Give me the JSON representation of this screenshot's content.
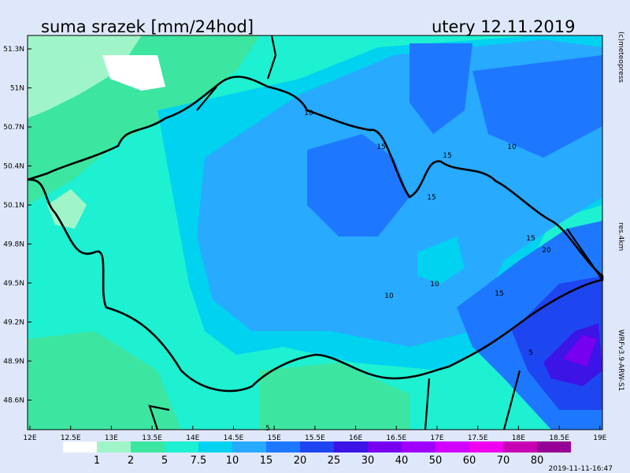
{
  "header": {
    "title": "suma srazek [mm/24hod]",
    "date": "utery 12.11.2019"
  },
  "axes": {
    "lat_labels": [
      "51.3N",
      "51N",
      "50.7N",
      "50.4N",
      "50.1N",
      "49.8N",
      "49.5N",
      "49.2N",
      "48.9N",
      "48.6N"
    ],
    "lon_labels": [
      "12E",
      "12.5E",
      "13E",
      "13.5E",
      "14E",
      "14.5E",
      "15E",
      "15.5E",
      "16E",
      "16.5E",
      "17E",
      "17.5E",
      "18E",
      "18.5E",
      "19E"
    ]
  },
  "contour_labels": [
    "10",
    "15",
    "15",
    "10",
    "15",
    "15",
    "20",
    "10",
    "15",
    "10",
    "5",
    "5"
  ],
  "colorbar": {
    "labels": [
      "1",
      "2",
      "5",
      "7.5",
      "10",
      "15",
      "20",
      "25",
      "30",
      "40",
      "50",
      "60",
      "70",
      "80"
    ],
    "colors": [
      "#ffffff",
      "#a0f5c8",
      "#3ce6a0",
      "#1ef0d2",
      "#00d2f0",
      "#28aaff",
      "#1e78ff",
      "#1e46f0",
      "#3c14e6",
      "#7800f0",
      "#a000ff",
      "#d200ff",
      "#f000f0",
      "#c800b4",
      "#960096"
    ]
  },
  "credits": {
    "copyright": "(c)meteopress",
    "resolution": "res.4km",
    "model": "WRFv3.9-ARW-S1",
    "timestamp": "2019-11-11-16:47"
  }
}
